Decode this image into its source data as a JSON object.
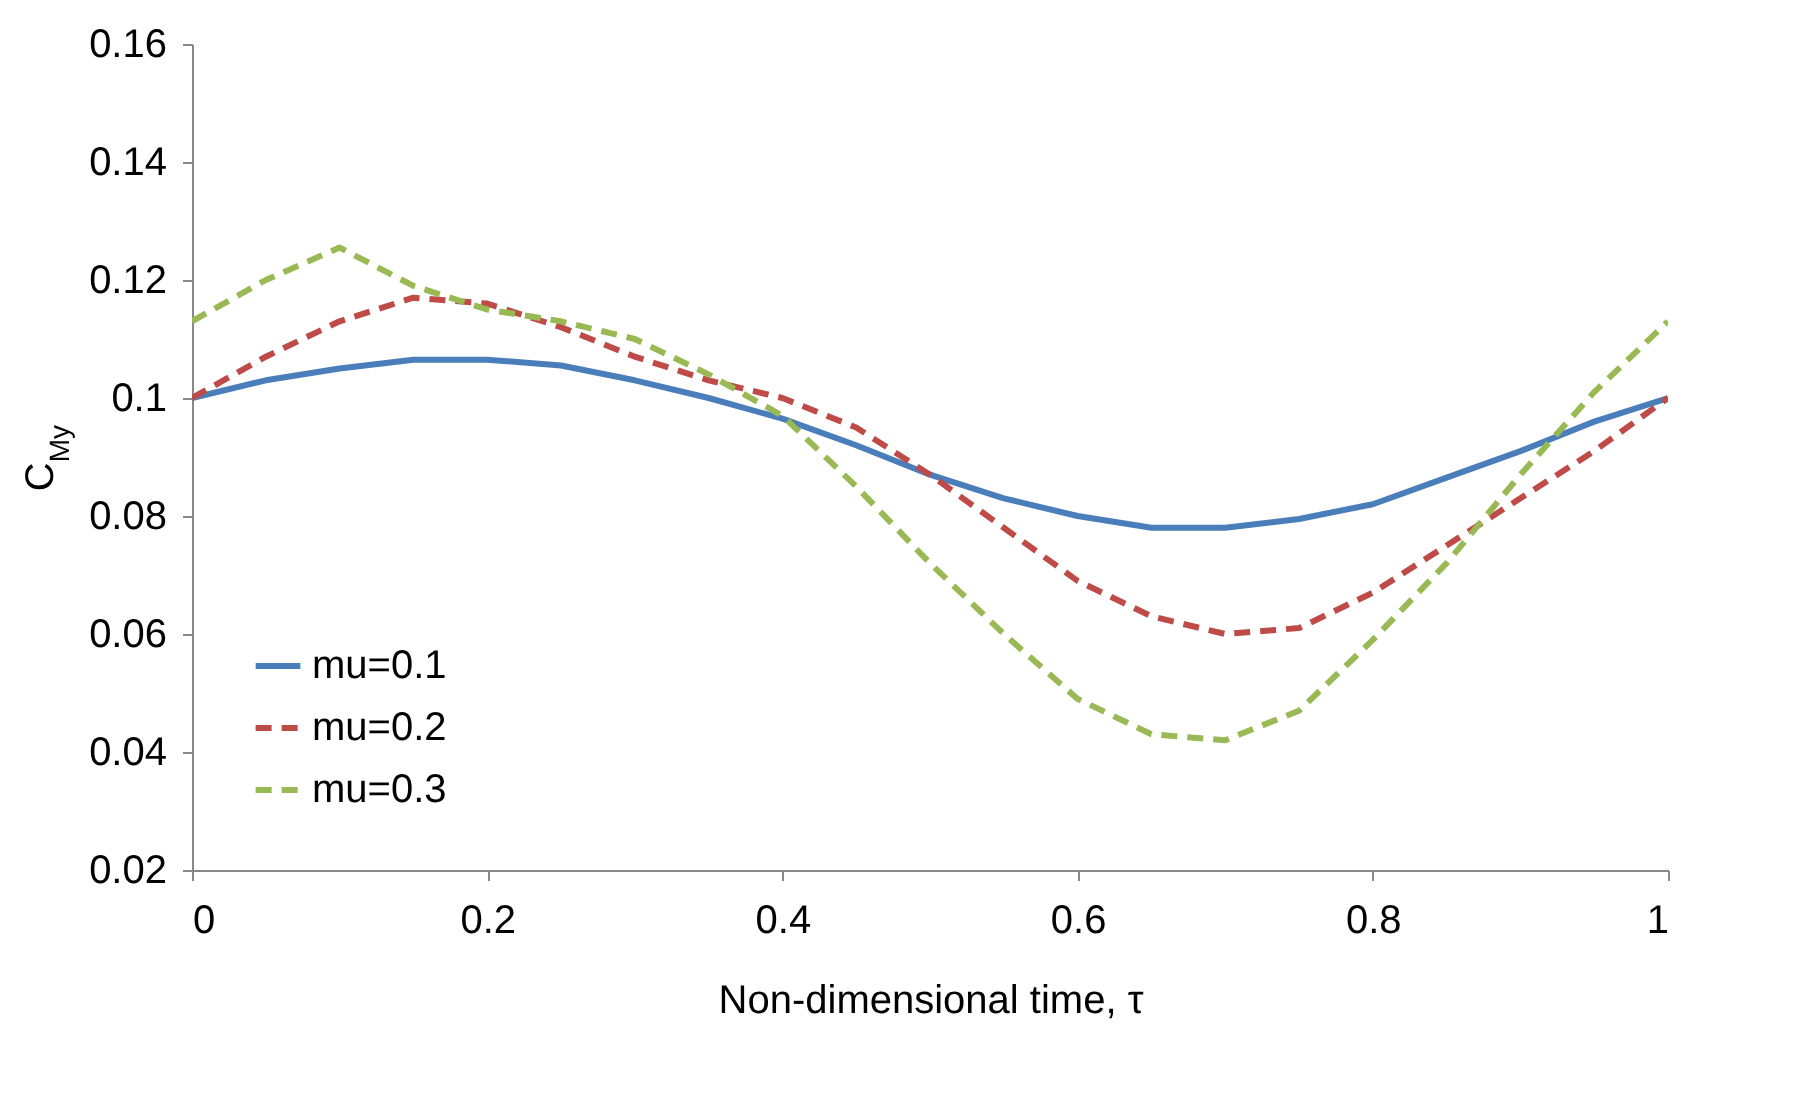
{
  "chart_data": {
    "type": "line",
    "xlabel": "Non-dimensional time, τ",
    "ylabel": "C$_{My}$",
    "x": [
      0,
      0.05,
      0.1,
      0.15,
      0.2,
      0.25,
      0.3,
      0.35,
      0.4,
      0.45,
      0.5,
      0.55,
      0.6,
      0.65,
      0.7,
      0.75,
      0.8,
      0.85,
      0.9,
      0.95,
      1
    ],
    "series": [
      {
        "name": "mu=0.1",
        "color": "#4a7ebb",
        "line_style": "solid",
        "values": [
          0.1,
          0.103,
          0.105,
          0.1065,
          0.1065,
          0.1055,
          0.103,
          0.1,
          0.0965,
          0.092,
          0.087,
          0.083,
          0.08,
          0.078,
          0.078,
          0.0795,
          0.082,
          0.0865,
          0.091,
          0.096,
          0.1
        ]
      },
      {
        "name": "mu=0.2",
        "color": "#be4b48",
        "line_style": "dashed",
        "values": [
          0.1,
          0.107,
          0.113,
          0.117,
          0.116,
          0.112,
          0.107,
          0.103,
          0.1,
          0.095,
          0.087,
          0.078,
          0.069,
          0.063,
          0.06,
          0.061,
          0.067,
          0.075,
          0.083,
          0.091,
          0.1
        ]
      },
      {
        "name": "mu=0.3",
        "color": "#98b954",
        "line_style": "dashed",
        "values": [
          0.113,
          0.12,
          0.1255,
          0.119,
          0.115,
          0.113,
          0.11,
          0.104,
          0.097,
          0.085,
          0.072,
          0.06,
          0.049,
          0.043,
          0.042,
          0.047,
          0.059,
          0.072,
          0.087,
          0.101,
          0.113
        ]
      }
    ],
    "xlim": [
      0,
      1
    ],
    "xticks": [
      0,
      0.2,
      0.4,
      0.6,
      0.8,
      1
    ],
    "ylim": [
      0.02,
      0.16
    ],
    "yticks": [
      0.02,
      0.04,
      0.06,
      0.08,
      0.1,
      0.12,
      0.14,
      0.16
    ],
    "grid": false,
    "legend": "bottom left"
  }
}
